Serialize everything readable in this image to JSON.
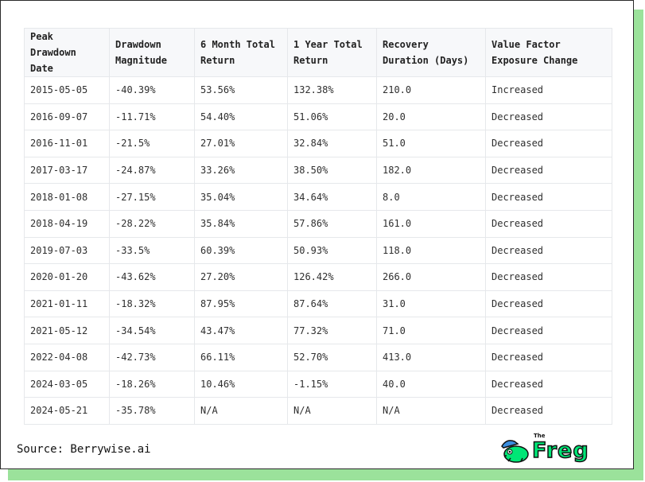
{
  "table": {
    "headers": [
      "Peak Drawdown Date",
      "Drawdown Magnitude",
      "6 Month Total Return",
      "1 Year Total Return",
      "Recovery Duration (Days)",
      "Value Factor Exposure Change"
    ],
    "rows": [
      [
        "2015-05-05",
        "-40.39%",
        "53.56%",
        "132.38%",
        "210.0",
        "Increased"
      ],
      [
        "2016-09-07",
        "-11.71%",
        "54.40%",
        "51.06%",
        "20.0",
        "Decreased"
      ],
      [
        "2016-11-01",
        "-21.5%",
        "27.01%",
        "32.84%",
        "51.0",
        "Decreased"
      ],
      [
        "2017-03-17",
        "-24.87%",
        "33.26%",
        "38.50%",
        "182.0",
        "Decreased"
      ],
      [
        "2018-01-08",
        "-27.15%",
        "35.04%",
        "34.64%",
        "8.0",
        "Decreased"
      ],
      [
        "2018-04-19",
        "-28.22%",
        "35.84%",
        "57.86%",
        "161.0",
        "Decreased"
      ],
      [
        "2019-07-03",
        "-33.5%",
        "60.39%",
        "50.93%",
        "118.0",
        "Decreased"
      ],
      [
        "2020-01-20",
        "-43.62%",
        "27.20%",
        "126.42%",
        "266.0",
        "Decreased"
      ],
      [
        "2021-01-11",
        "-18.32%",
        "87.95%",
        "87.64%",
        "31.0",
        "Decreased"
      ],
      [
        "2021-05-12",
        "-34.54%",
        "43.47%",
        "77.32%",
        "71.0",
        "Decreased"
      ],
      [
        "2022-04-08",
        "-42.73%",
        "66.11%",
        "52.70%",
        "413.0",
        "Decreased"
      ],
      [
        "2024-03-05",
        "-18.26%",
        "10.46%",
        "-1.15%",
        "40.0",
        "Decreased"
      ],
      [
        "2024-05-21",
        "-35.78%",
        "N/A",
        "N/A",
        "N/A",
        "Decreased"
      ]
    ]
  },
  "footer": {
    "source": "Source: Berrywise.ai",
    "logo_small": "The",
    "logo_text": "Freg"
  },
  "colors": {
    "shadow": "#9be29b",
    "logo_green": "#00e676",
    "logo_hat": "#3a8dde"
  },
  "icons": [
    "frog-mascot-icon"
  ]
}
